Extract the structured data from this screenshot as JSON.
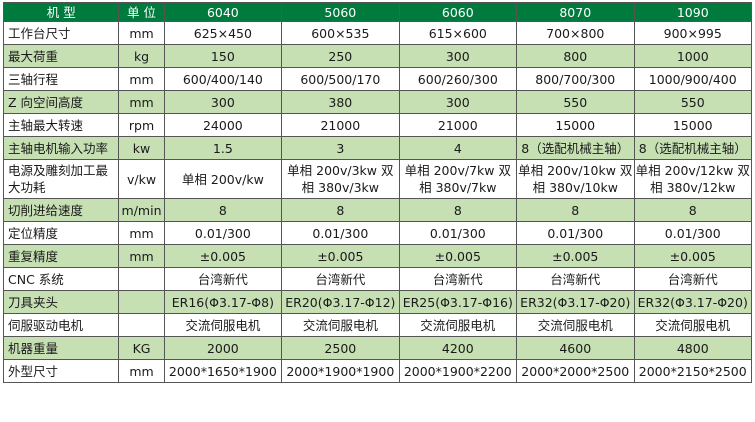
{
  "header": {
    "name": "机 型",
    "unit": "单 位",
    "models": [
      "6040",
      "5060",
      "6060",
      "8070",
      "1090"
    ]
  },
  "rows": [
    {
      "name": "工作台尺寸",
      "unit": "mm",
      "values": [
        "625×450",
        "600×535",
        "615×600",
        "700×800",
        "900×995"
      ]
    },
    {
      "name": "最大荷重",
      "unit": "kg",
      "values": [
        "150",
        "250",
        "300",
        "800",
        "1000"
      ]
    },
    {
      "name": "三轴行程",
      "unit": "mm",
      "values": [
        "600/400/140",
        "600/500/170",
        "600/260/300",
        "800/700/300",
        "1000/900/400"
      ]
    },
    {
      "name": "Z 向空间高度",
      "unit": "mm",
      "values": [
        "300",
        "380",
        "300",
        "550",
        "550"
      ]
    },
    {
      "name": "主轴最大转速",
      "unit": "rpm",
      "values": [
        "24000",
        "21000",
        "21000",
        "15000",
        "15000"
      ]
    },
    {
      "name": "主轴电机输入功率",
      "unit": "kw",
      "values": [
        "1.5",
        "3",
        "4",
        "8（选配机械主轴）",
        "8（选配机械主轴）"
      ]
    },
    {
      "name": "电源及雕刻加工最大功耗",
      "unit": "v/kw",
      "values": [
        "单相 200v/kw",
        "单相 200v/3kw 双相 380v/3kw",
        "单相 200v/7kw 双相 380v/7kw",
        "单相 200v/10kw 双相 380v/10kw",
        "单相 200v/12kw 双相 380v/12kw"
      ]
    },
    {
      "name": "切削进给速度",
      "unit": "m/min",
      "values": [
        "8",
        "8",
        "8",
        "8",
        "8"
      ]
    },
    {
      "name": "定位精度",
      "unit": "mm",
      "values": [
        "0.01/300",
        "0.01/300",
        "0.01/300",
        "0.01/300",
        "0.01/300"
      ]
    },
    {
      "name": "重复精度",
      "unit": "mm",
      "values": [
        "±0.005",
        "±0.005",
        "±0.005",
        "±0.005",
        "±0.005"
      ]
    },
    {
      "name": "CNC 系统",
      "unit": "",
      "values": [
        "台湾新代",
        "台湾新代",
        "台湾新代",
        "台湾新代",
        "台湾新代"
      ]
    },
    {
      "name": "刀具夹头",
      "unit": "",
      "values": [
        "ER16(Φ3.17-Φ8)",
        "ER20(Φ3.17-Φ12)",
        "ER25(Φ3.17-Φ16)",
        "ER32(Φ3.17-Φ20)",
        "ER32(Φ3.17-Φ20)"
      ]
    },
    {
      "name": "伺服驱动电机",
      "unit": "",
      "values": [
        "交流伺服电机",
        "交流伺服电机",
        "交流伺服电机",
        "交流伺服电机",
        "交流伺服电机"
      ]
    },
    {
      "name": "机器重量",
      "unit": "KG",
      "values": [
        "2000",
        "2500",
        "4200",
        "4600",
        "4800"
      ]
    },
    {
      "name": "外型尺寸",
      "unit": "mm",
      "values": [
        "2000*1650*1900",
        "2000*1900*1900",
        "2000*1900*2200",
        "2000*2000*2500",
        "2000*2150*2500"
      ]
    }
  ],
  "colors": {
    "header_bg": "#007a3d",
    "header_text": "#ffffff",
    "row_green": "#c6e0b4",
    "row_white": "#ffffff",
    "border": "#555555"
  }
}
